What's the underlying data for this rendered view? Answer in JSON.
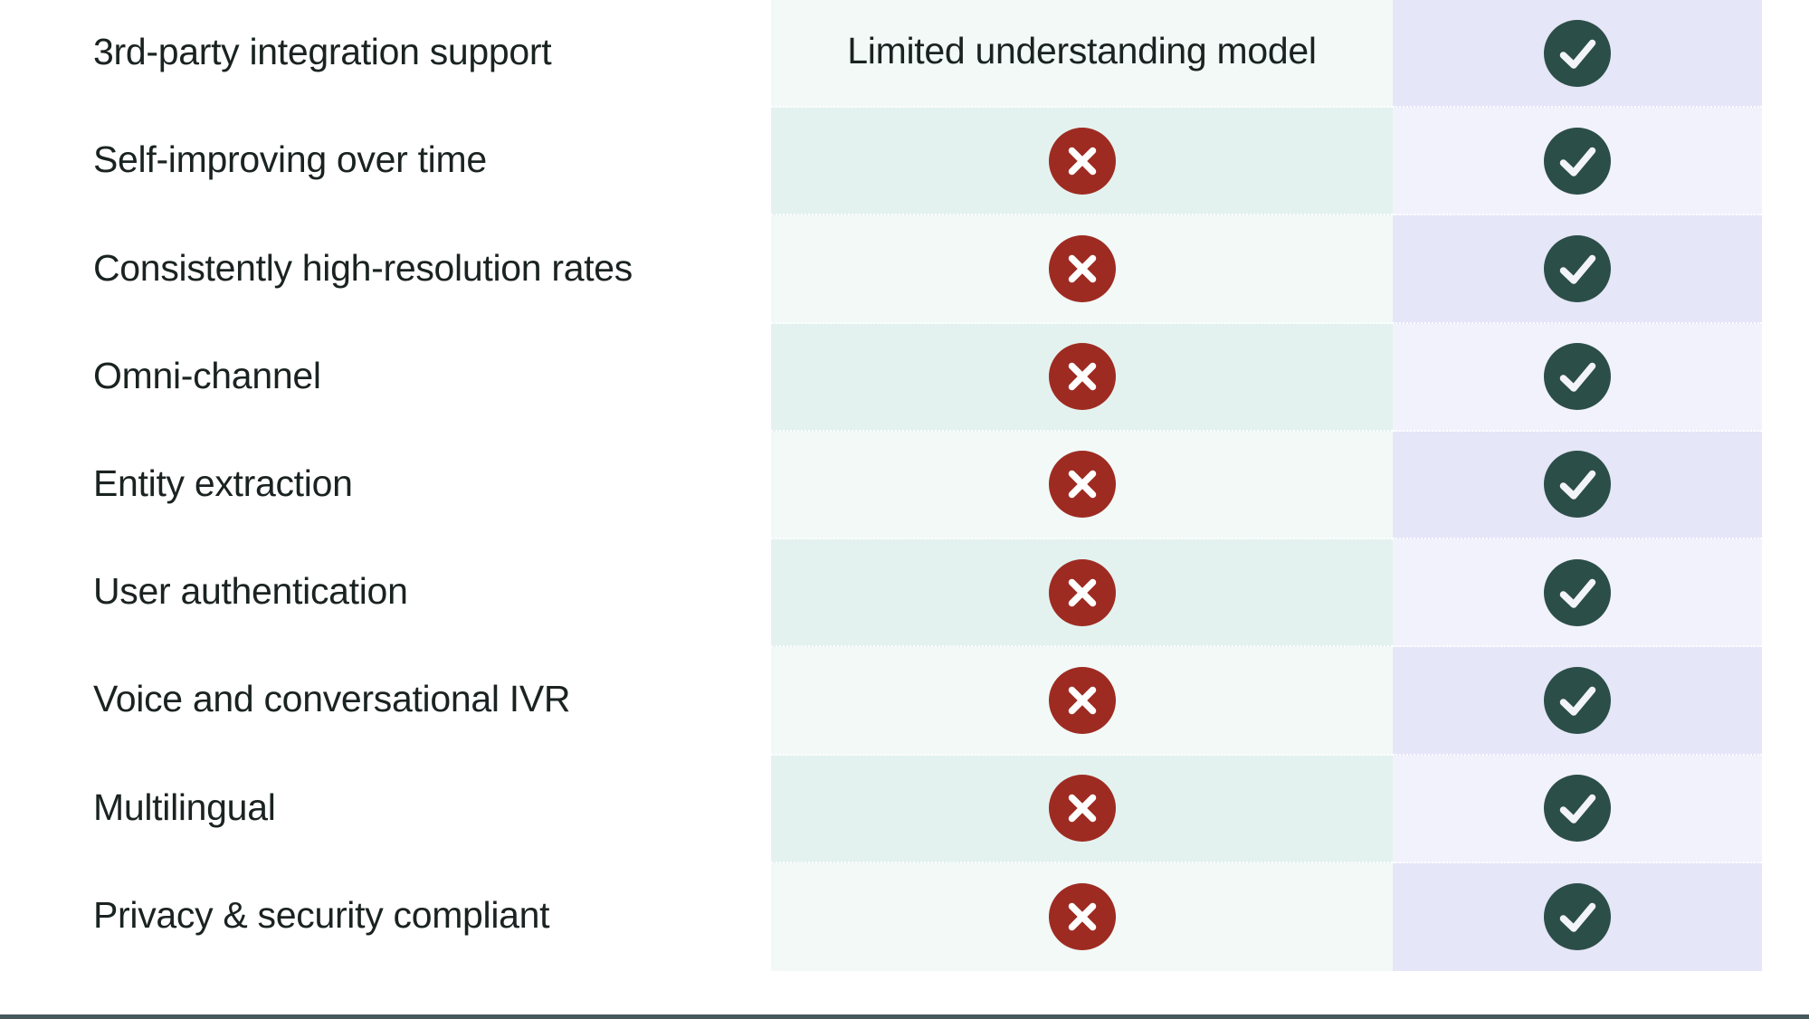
{
  "page": {
    "background": "#ffffff"
  },
  "colors": {
    "mint_light": "#f2f9f7",
    "mint_dark": "#e4f2ef",
    "lavender_dark": "#e5e6f8",
    "lavender_light": "#f1f2fc",
    "cross_red": "#9e2b22",
    "check_teal": "#2c4e48",
    "check_mark": "#f3f4f8",
    "cross_mark": "#ffffff",
    "text": "#1a2321",
    "bottom_bar": "#46595d"
  },
  "comparison_table": {
    "rows": [
      {
        "feature": "3rd-party integration support",
        "column_a": {
          "type": "text",
          "label": "Limited understanding model"
        },
        "column_b": {
          "type": "check"
        }
      },
      {
        "feature": "Self-improving over time",
        "column_a": {
          "type": "cross"
        },
        "column_b": {
          "type": "check"
        }
      },
      {
        "feature": "Consistently high-resolution rates",
        "column_a": {
          "type": "cross"
        },
        "column_b": {
          "type": "check"
        }
      },
      {
        "feature": "Omni-channel",
        "column_a": {
          "type": "cross"
        },
        "column_b": {
          "type": "check"
        }
      },
      {
        "feature": "Entity extraction",
        "column_a": {
          "type": "cross"
        },
        "column_b": {
          "type": "check"
        }
      },
      {
        "feature": "User authentication",
        "column_a": {
          "type": "cross"
        },
        "column_b": {
          "type": "check"
        }
      },
      {
        "feature": "Voice and conversational IVR",
        "column_a": {
          "type": "cross"
        },
        "column_b": {
          "type": "check"
        }
      },
      {
        "feature": "Multilingual",
        "column_a": {
          "type": "cross"
        },
        "column_b": {
          "type": "check"
        }
      },
      {
        "feature": "Privacy & security compliant",
        "column_a": {
          "type": "cross"
        },
        "column_b": {
          "type": "check"
        }
      }
    ]
  },
  "footer": {
    "divider": "bottom-divider-bar"
  }
}
